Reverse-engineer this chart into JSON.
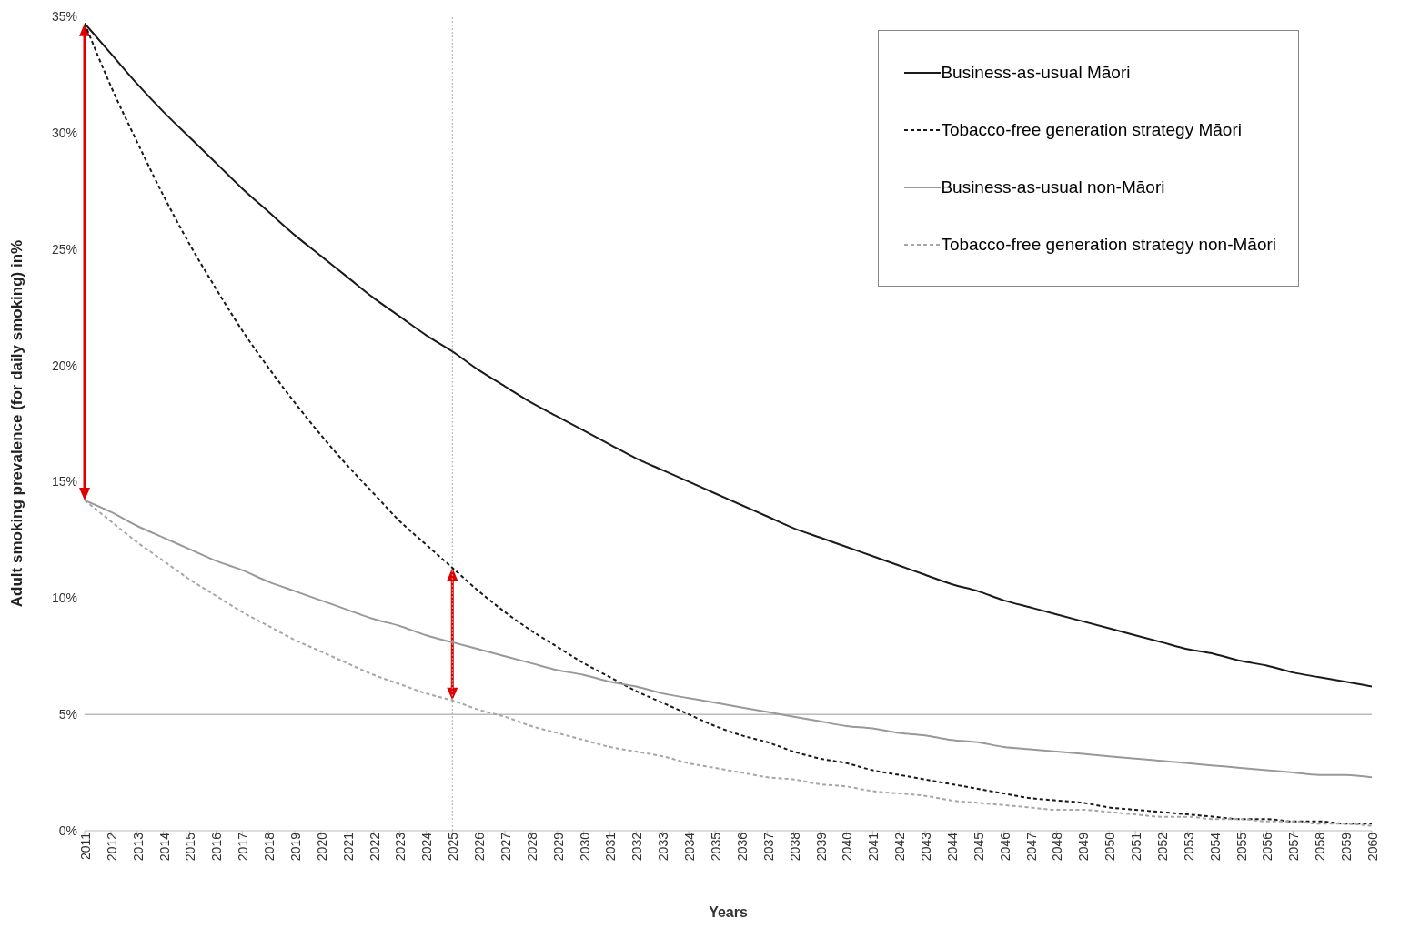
{
  "chart_data": {
    "type": "line",
    "xlabel": "Years",
    "ylabel": "Adult smoking prevalence (for daily smoking) in%",
    "categories": [
      "2011",
      "2012",
      "2013",
      "2014",
      "2015",
      "2016",
      "2017",
      "2018",
      "2019",
      "2020",
      "2021",
      "2022",
      "2023",
      "2024",
      "2025",
      "2026",
      "2027",
      "2028",
      "2029",
      "2030",
      "2031",
      "2032",
      "2033",
      "2034",
      "2035",
      "2036",
      "2037",
      "2038",
      "2039",
      "2040",
      "2041",
      "2042",
      "2043",
      "2044",
      "2045",
      "2046",
      "2047",
      "2048",
      "2049",
      "2050",
      "2051",
      "2052",
      "2053",
      "2054",
      "2055",
      "2056",
      "2057",
      "2058",
      "2059",
      "2060"
    ],
    "series": [
      {
        "name": "Business-as-usual Māori",
        "color": "#1a1a1a",
        "line_style": "solid",
        "values": [
          34.7,
          33.4,
          32.1,
          30.9,
          29.8,
          28.7,
          27.6,
          26.6,
          25.6,
          24.7,
          23.8,
          22.9,
          22.1,
          21.3,
          20.6,
          19.8,
          19.1,
          18.4,
          17.8,
          17.2,
          16.6,
          16.0,
          15.5,
          15.0,
          14.5,
          14.0,
          13.5,
          13.0,
          12.6,
          12.2,
          11.8,
          11.4,
          11.0,
          10.6,
          10.3,
          9.9,
          9.6,
          9.3,
          9.0,
          8.7,
          8.4,
          8.1,
          7.8,
          7.6,
          7.3,
          7.1,
          6.8,
          6.6,
          6.4,
          6.2
        ]
      },
      {
        "name": "Tobacco-free generation strategy Māori",
        "color": "#1a1a1a",
        "line_style": "dashed",
        "values": [
          34.7,
          32.0,
          29.6,
          27.3,
          25.2,
          23.3,
          21.5,
          19.9,
          18.4,
          17.0,
          15.7,
          14.5,
          13.3,
          12.3,
          11.3,
          10.3,
          9.4,
          8.6,
          7.9,
          7.2,
          6.6,
          6.0,
          5.5,
          5.0,
          4.5,
          4.1,
          3.8,
          3.4,
          3.1,
          2.9,
          2.6,
          2.4,
          2.2,
          2.0,
          1.8,
          1.6,
          1.4,
          1.3,
          1.2,
          1.0,
          0.9,
          0.8,
          0.7,
          0.6,
          0.5,
          0.5,
          0.4,
          0.4,
          0.3,
          0.3
        ]
      },
      {
        "name": "Business-as-usual non-Māori",
        "color": "#999999",
        "line_style": "solid",
        "values": [
          14.2,
          13.7,
          13.1,
          12.6,
          12.1,
          11.6,
          11.2,
          10.7,
          10.3,
          9.9,
          9.5,
          9.1,
          8.8,
          8.4,
          8.1,
          7.8,
          7.5,
          7.2,
          6.9,
          6.7,
          6.4,
          6.2,
          5.9,
          5.7,
          5.5,
          5.3,
          5.1,
          4.9,
          4.7,
          4.5,
          4.4,
          4.2,
          4.1,
          3.9,
          3.8,
          3.6,
          3.5,
          3.4,
          3.3,
          3.2,
          3.1,
          3.0,
          2.9,
          2.8,
          2.7,
          2.6,
          2.5,
          2.4,
          2.4,
          2.3
        ]
      },
      {
        "name": "Tobacco-free generation strategy non-Māori",
        "color": "#a6a6a6",
        "line_style": "dashed",
        "values": [
          14.2,
          13.3,
          12.4,
          11.6,
          10.8,
          10.1,
          9.4,
          8.8,
          8.2,
          7.7,
          7.2,
          6.7,
          6.3,
          5.9,
          5.6,
          5.2,
          4.9,
          4.5,
          4.2,
          3.9,
          3.6,
          3.4,
          3.2,
          2.9,
          2.7,
          2.5,
          2.3,
          2.2,
          2.0,
          1.9,
          1.7,
          1.6,
          1.5,
          1.3,
          1.2,
          1.1,
          1.0,
          0.9,
          0.9,
          0.8,
          0.7,
          0.6,
          0.6,
          0.5,
          0.5,
          0.4,
          0.4,
          0.3,
          0.3,
          0.2
        ]
      }
    ],
    "ylim": [
      0,
      35
    ],
    "yticks": [
      {
        "value": 0,
        "label": "0%"
      },
      {
        "value": 5,
        "label": "5%"
      },
      {
        "value": 10,
        "label": "10%"
      },
      {
        "value": 15,
        "label": "15%"
      },
      {
        "value": 20,
        "label": "20%"
      },
      {
        "value": 25,
        "label": "25%"
      },
      {
        "value": 30,
        "label": "30%"
      },
      {
        "value": 35,
        "label": "35%"
      }
    ],
    "ref_lines": [
      {
        "axis": "y",
        "value": 5,
        "color": "#999999",
        "line_style": "solid"
      },
      {
        "axis": "x",
        "value": "2025",
        "color": "#aaaaaa",
        "line_style": "dotted"
      }
    ],
    "legend": "top right"
  }
}
